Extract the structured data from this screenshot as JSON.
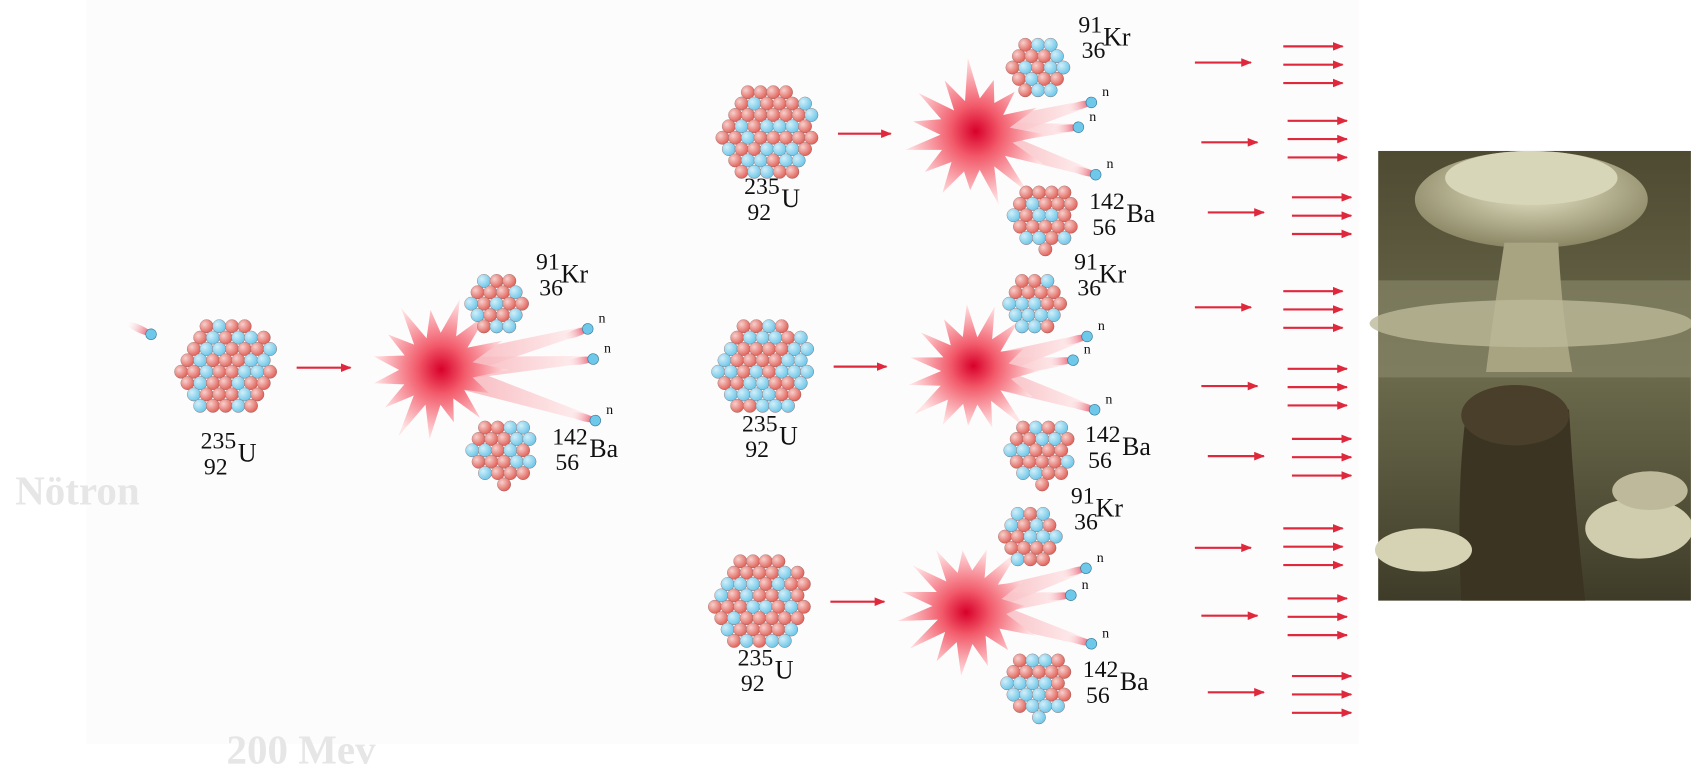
{
  "labels": {
    "neutron": "Nötron",
    "energy": "200 Mev"
  },
  "fissions": [
    {
      "nucleus": {
        "mass": "235",
        "number": "92",
        "symbol": "U"
      },
      "products": [
        {
          "mass": "91",
          "number": "36",
          "symbol": "Kr"
        },
        {
          "mass": "142",
          "number": "56",
          "symbol": "Ba"
        }
      ],
      "neutrons": [
        "n",
        "n",
        "n"
      ]
    },
    {
      "nucleus": {
        "mass": "235",
        "number": "92",
        "symbol": "U"
      },
      "products": [
        {
          "mass": "91",
          "number": "36",
          "symbol": "Kr"
        },
        {
          "mass": "142",
          "number": "56",
          "symbol": "Ba"
        }
      ],
      "neutrons": [
        "n",
        "n",
        "n"
      ]
    },
    {
      "nucleus": {
        "mass": "235",
        "number": "92",
        "symbol": "U"
      },
      "products": [
        {
          "mass": "91",
          "number": "36",
          "symbol": "Kr"
        },
        {
          "mass": "142",
          "number": "56",
          "symbol": "Ba"
        }
      ],
      "neutrons": [
        "n",
        "n",
        "n"
      ]
    },
    {
      "nucleus": {
        "mass": "235",
        "number": "92",
        "symbol": "U"
      },
      "products": [
        {
          "mass": "91",
          "number": "36",
          "symbol": "Kr"
        },
        {
          "mass": "142",
          "number": "56",
          "symbol": "Ba"
        }
      ],
      "neutrons": [
        "n",
        "n",
        "n"
      ]
    }
  ]
}
